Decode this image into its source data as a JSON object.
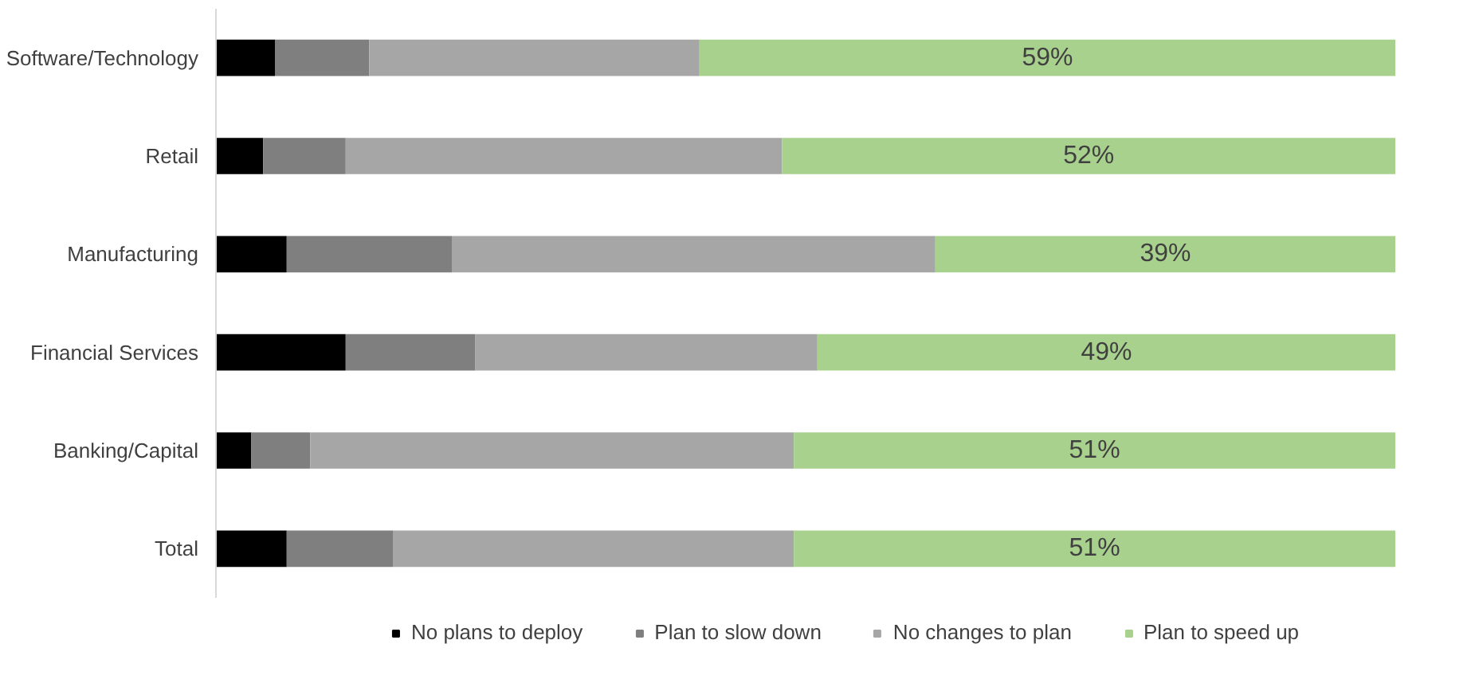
{
  "chart_data": {
    "type": "bar",
    "orientation": "horizontal",
    "stacked": true,
    "legend": "bottom",
    "grid": false,
    "tick_labels": "y",
    "xlim": [
      0,
      100
    ],
    "categories": [
      "Software/Technology",
      "Retail",
      "Manufacturing",
      "Financial Services",
      "Banking/Capital",
      "Total"
    ],
    "series": [
      {
        "name": "No plans to deploy",
        "color": "#000000",
        "values": [
          5,
          4,
          6,
          11,
          3,
          6
        ]
      },
      {
        "name": "Plan to slow down",
        "color": "#7f7f7f",
        "values": [
          8,
          7,
          14,
          11,
          5,
          9
        ]
      },
      {
        "name": "No changes to plan",
        "color": "#a6a6a6",
        "values": [
          28,
          37,
          41,
          29,
          41,
          34
        ]
      },
      {
        "name": "Plan to speed up",
        "color": "#a9d18e",
        "values": [
          59,
          52,
          39,
          49,
          51,
          51
        ],
        "value_labels": [
          "59%",
          "52%",
          "39%",
          "49%",
          "51%",
          "51%"
        ]
      }
    ]
  }
}
